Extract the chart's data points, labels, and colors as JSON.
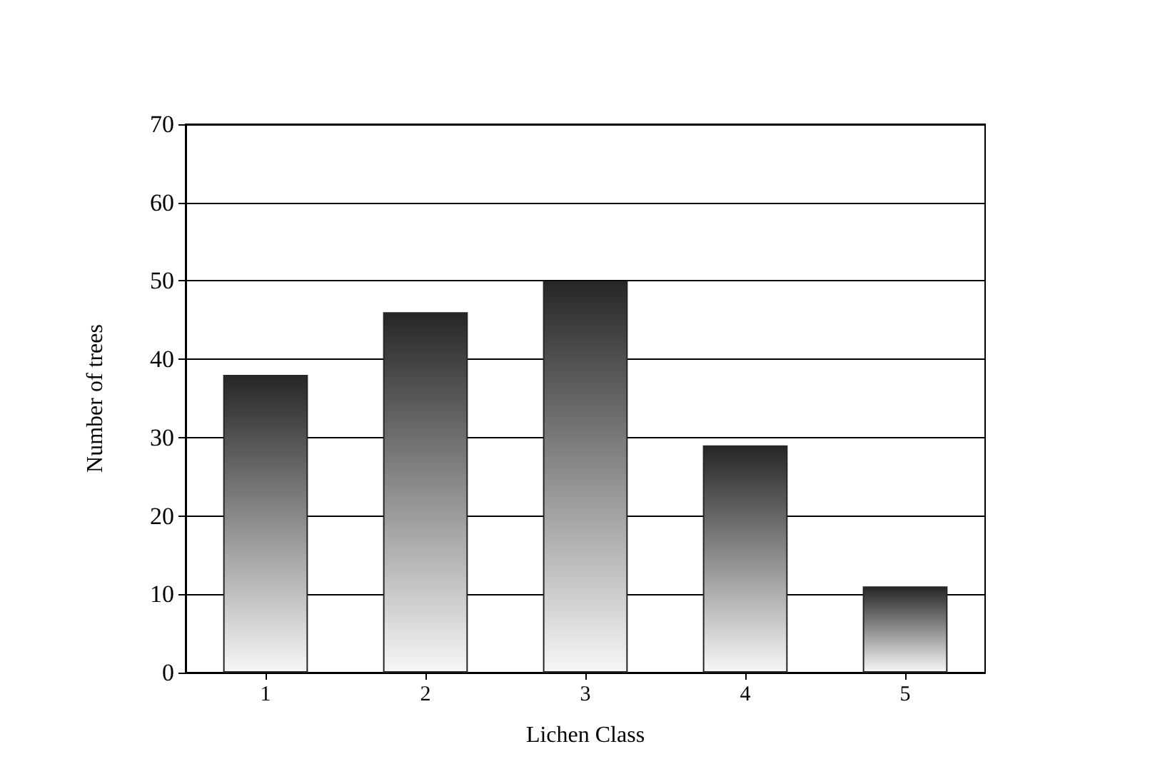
{
  "chart_data": {
    "type": "bar",
    "xlabel": "Lichen Class",
    "ylabel": "Number of trees",
    "categories": [
      "1",
      "2",
      "3",
      "4",
      "5"
    ],
    "values": [
      38,
      46,
      50,
      29,
      11
    ],
    "color": "#262626",
    "ylim": [
      0,
      70
    ],
    "yticks": [
      0,
      10,
      20,
      30,
      40,
      50,
      60,
      70
    ],
    "grid": "y"
  }
}
